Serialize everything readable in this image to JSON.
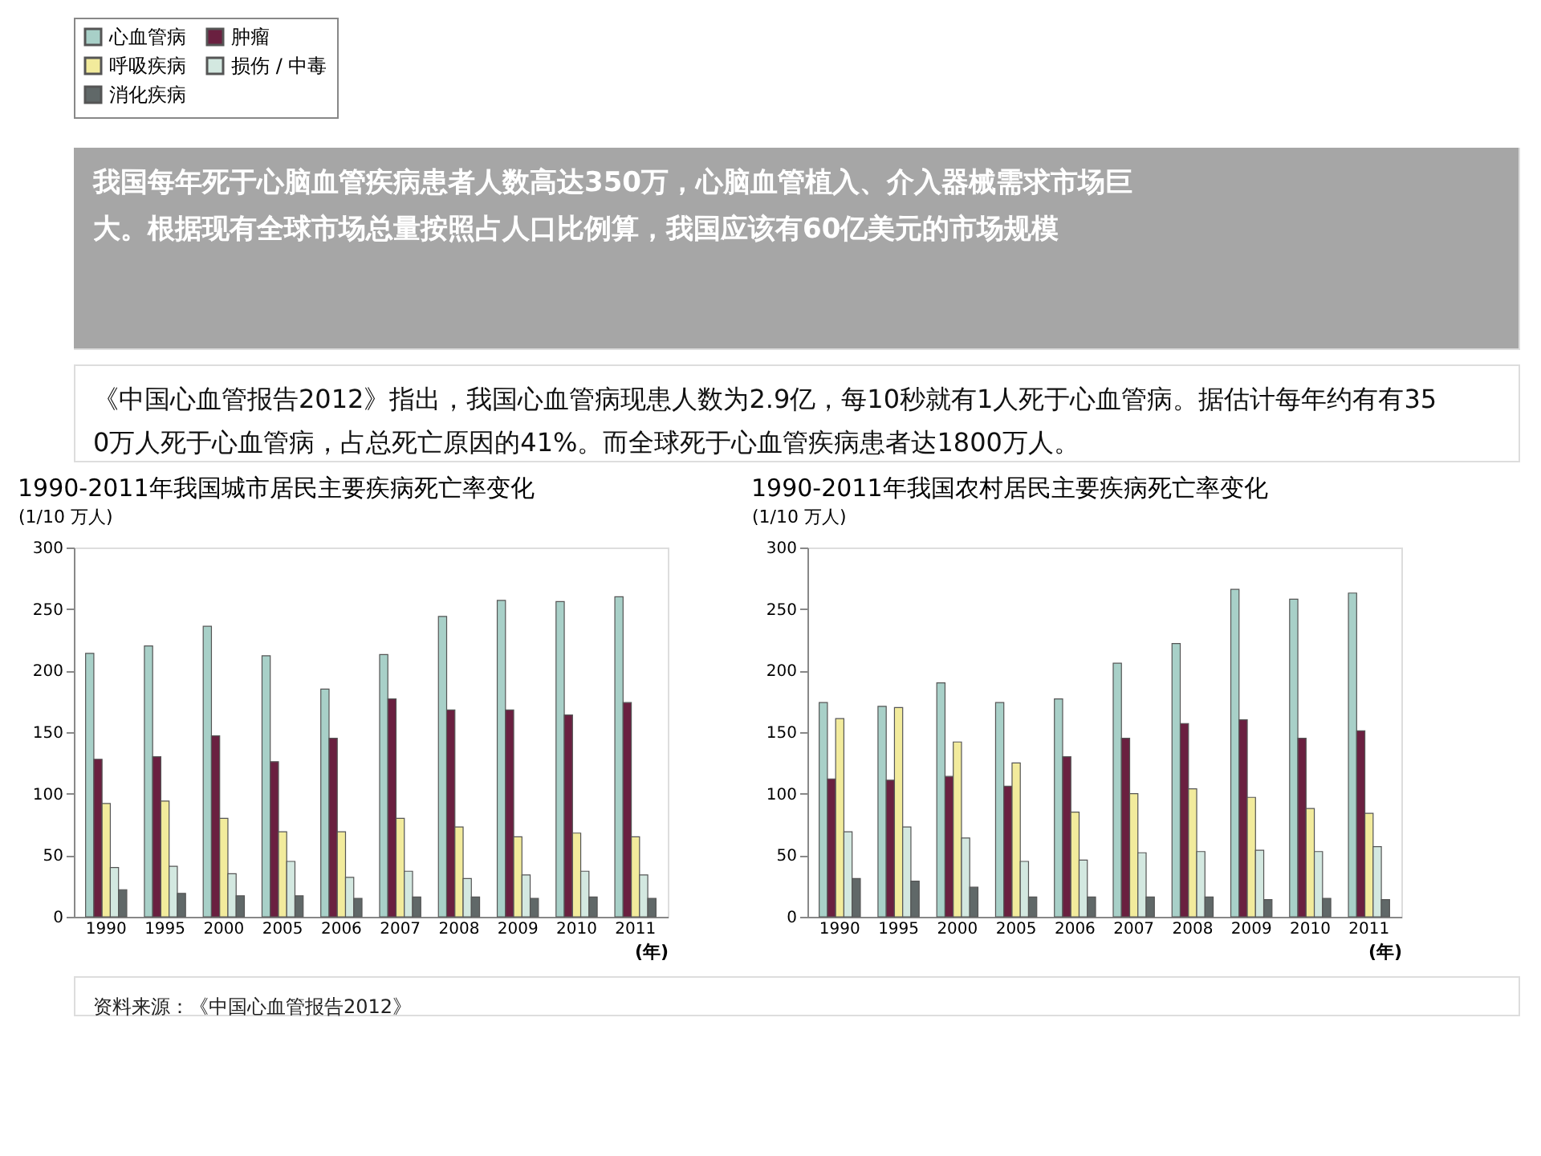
{
  "chart_data": [
    {
      "type": "bar",
      "title": "1990-2011年我国城市居民主要疾病死亡率变化",
      "ylabel": "(1/10 万人)",
      "xlabel": "(年)",
      "annotations": [
        "我国每年死于心脑血管疾病患者人数高达350万，心脑血管植入、介入器械需求市场巨大。根据现有全球市场总量按照占人口比例算，我国应该有60亿美元的市场规模",
        "《中国心血管报告2012》指出，我国心血管病现患人数为2.9亿，每10秒就有1人死于心血管病。据估计每年约有有350万人死于心血管病，占总死亡原因的41%。而全球死于心血管疾病患者达1800万人。"
      ],
      "categories": [
        "1990",
        "1995",
        "2000",
        "2005",
        "2006",
        "2007",
        "2008",
        "2009",
        "2010",
        "2011"
      ],
      "ylim": [
        0,
        300
      ],
      "yticks": [
        0,
        50,
        100,
        150,
        200,
        250,
        300
      ],
      "grid": false,
      "legend": "top",
      "series": [
        {
          "name": "心血管病",
          "color": "#a8d0c8",
          "values": [
            214,
            220,
            236,
            212,
            185,
            213,
            244,
            257,
            256,
            260
          ]
        },
        {
          "name": "肿瘤",
          "color": "#6a2040",
          "values": [
            128,
            130,
            147,
            126,
            145,
            177,
            168,
            168,
            164,
            174
          ]
        },
        {
          "name": "呼吸疾病",
          "color": "#f2eb9c",
          "values": [
            92,
            94,
            80,
            69,
            69,
            80,
            73,
            65,
            68,
            65
          ]
        },
        {
          "name": "损伤 / 中毒",
          "color": "#d3e8e0",
          "values": [
            40,
            41,
            35,
            45,
            32,
            37,
            31,
            34,
            37,
            34
          ]
        },
        {
          "name": "消化疾病",
          "color": "#606868",
          "values": [
            22,
            19,
            17,
            17,
            15,
            16,
            16,
            15,
            16,
            15
          ]
        }
      ]
    },
    {
      "type": "bar",
      "title": "1990-2011年我国农村居民主要疾病死亡率变化",
      "ylabel": "(1/10 万人)",
      "xlabel": "(年)",
      "annotations": [
        "资料来源：《中国心血管报告2012》"
      ],
      "categories": [
        "1990",
        "1995",
        "2000",
        "2005",
        "2006",
        "2007",
        "2008",
        "2009",
        "2010",
        "2011"
      ],
      "ylim": [
        0,
        300
      ],
      "yticks": [
        0,
        50,
        100,
        150,
        200,
        250,
        300
      ],
      "grid": false,
      "legend": "top",
      "series": [
        {
          "name": "心血管病",
          "color": "#a8d0c8",
          "values": [
            174,
            171,
            190,
            174,
            177,
            206,
            222,
            266,
            258,
            263
          ]
        },
        {
          "name": "肿瘤",
          "color": "#6a2040",
          "values": [
            112,
            111,
            114,
            106,
            130,
            145,
            157,
            160,
            145,
            151
          ]
        },
        {
          "name": "呼吸疾病",
          "color": "#f2eb9c",
          "values": [
            161,
            170,
            142,
            125,
            85,
            100,
            104,
            97,
            88,
            84
          ]
        },
        {
          "name": "损伤 / 中毒",
          "color": "#d3e8e0",
          "values": [
            69,
            73,
            64,
            45,
            46,
            52,
            53,
            54,
            53,
            57
          ]
        },
        {
          "name": "消化疾病",
          "color": "#606868",
          "values": [
            31,
            29,
            24,
            16,
            16,
            16,
            16,
            14,
            15,
            14
          ]
        }
      ]
    }
  ]
}
